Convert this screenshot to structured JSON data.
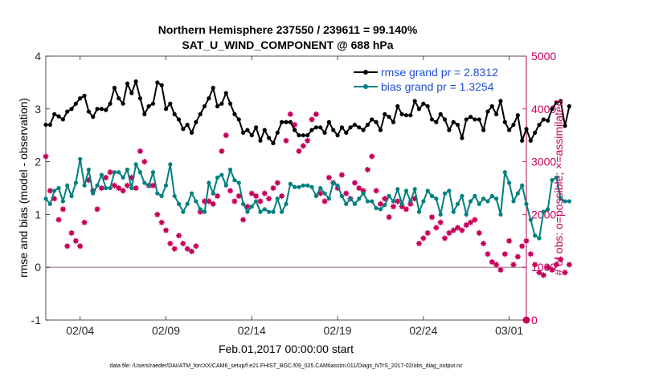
{
  "chart_data": {
    "type": "line",
    "title_line1": "Northern Hemisphere 237550 / 239611 = 99.140%",
    "title_line2": "SAT_U_WIND_COMPONENT @ 688 hPa",
    "xlabel": "Feb.01,2017 00:00:00 start",
    "ylabel_left": "rmse and bias (model - observation)",
    "ylabel_right": "# of obs: o=possible; ×=assimilated",
    "footnote": "data file: /Users/raeder/DAI/ATM_forcXX/CAM6_setup/f.e21.FHIST_BGC.f09_025.CAM6assim.011/Diags_NTrS_2017-02/obs_diag_output.nc",
    "xlim": [
      1,
      29
    ],
    "ylim_left": [
      -1,
      4
    ],
    "ylim_right": [
      0,
      5000
    ],
    "x_ticks": [
      3,
      8,
      13,
      18,
      23,
      28
    ],
    "x_tick_labels": [
      "02/04",
      "02/09",
      "02/14",
      "02/19",
      "02/24",
      "03/01"
    ],
    "y_left_ticks": [
      -1,
      0,
      1,
      2,
      3,
      4
    ],
    "y_left_tick_labels": [
      "-1",
      "0",
      "1",
      "2",
      "3",
      "4"
    ],
    "y_right_ticks": [
      0,
      1000,
      2000,
      3000,
      4000,
      5000
    ],
    "y_right_tick_labels": [
      "0",
      "1000",
      "2000",
      "3000",
      "4000",
      "5000"
    ],
    "x_start": 1.0,
    "x_step": 0.25,
    "legend": [
      {
        "label": "rmse grand pr = 2.8312",
        "color": "#000000"
      },
      {
        "label": "bias grand pr = 1.3254",
        "color": "#00807f"
      }
    ],
    "series": [
      {
        "name": "rmse",
        "axis": "left",
        "color": "#000000",
        "values": [
          2.7,
          2.7,
          2.9,
          2.86,
          2.8,
          2.95,
          3.0,
          3.1,
          3.2,
          3.25,
          2.95,
          2.85,
          3.0,
          3.0,
          2.98,
          3.1,
          3.4,
          3.2,
          3.1,
          3.48,
          3.3,
          3.52,
          3.2,
          2.9,
          3.05,
          3.1,
          3.5,
          3.45,
          3.0,
          3.1,
          2.9,
          2.8,
          2.62,
          2.7,
          2.55,
          2.75,
          2.9,
          3.05,
          3.2,
          3.4,
          3.05,
          3.1,
          3.3,
          3.1,
          2.9,
          2.8,
          2.55,
          2.6,
          2.5,
          2.65,
          2.4,
          2.6,
          2.45,
          2.35,
          2.55,
          2.75,
          2.75,
          2.75,
          2.6,
          2.5,
          2.5,
          2.5,
          2.6,
          2.65,
          2.65,
          2.55,
          2.75,
          2.6,
          2.5,
          2.65,
          2.55,
          2.65,
          2.7,
          2.65,
          2.6,
          2.7,
          2.8,
          2.75,
          2.6,
          2.9,
          2.85,
          2.75,
          3.05,
          2.9,
          2.88,
          2.88,
          3.15,
          3.0,
          3.1,
          3.05,
          2.8,
          2.75,
          2.9,
          2.8,
          2.6,
          2.75,
          2.7,
          2.45,
          2.8,
          2.85,
          2.8,
          2.8,
          2.6,
          2.95,
          3.05,
          2.9,
          3.15,
          2.75,
          2.6,
          2.7,
          2.88,
          2.4,
          2.62,
          2.4,
          2.55,
          2.7,
          2.8,
          2.78,
          3.0,
          3.12,
          3.15,
          2.68,
          3.05
        ]
      },
      {
        "name": "bias",
        "axis": "left",
        "color": "#00807f",
        "values": [
          1.3,
          1.2,
          1.45,
          1.5,
          1.25,
          1.55,
          1.35,
          1.6,
          2.05,
          1.55,
          1.85,
          1.4,
          1.55,
          1.75,
          1.5,
          1.5,
          1.8,
          1.8,
          1.7,
          1.85,
          1.5,
          1.95,
          1.8,
          1.6,
          1.55,
          1.8,
          1.4,
          1.35,
          1.55,
          1.95,
          1.35,
          1.2,
          1.05,
          1.2,
          1.4,
          1.25,
          1.1,
          1.05,
          1.6,
          1.4,
          1.7,
          1.75,
          1.55,
          1.85,
          1.65,
          1.6,
          1.2,
          1.05,
          1.15,
          1.25,
          1.05,
          1.1,
          1.05,
          1.05,
          1.3,
          1.05,
          1.2,
          1.58,
          1.52,
          1.52,
          1.55,
          1.55,
          1.52,
          1.35,
          1.5,
          1.4,
          1.3,
          1.6,
          1.55,
          1.35,
          1.2,
          1.3,
          1.2,
          1.3,
          1.4,
          1.25,
          1.25,
          1.12,
          1.1,
          1.18,
          1.35,
          1.25,
          1.48,
          1.2,
          1.45,
          1.25,
          1.48,
          1.05,
          1.25,
          1.45,
          1.35,
          1.3,
          1.0,
          1.4,
          1.45,
          1.05,
          1.2,
          1.35,
          1.0,
          1.25,
          1.35,
          1.2,
          1.3,
          1.25,
          1.35,
          1.3,
          1.0,
          1.8,
          1.6,
          1.25,
          1.4,
          1.55,
          1.2,
          0.9,
          0.6,
          0.55,
          1.05,
          1.1,
          1.65,
          1.7,
          1.3,
          1.25,
          1.25
        ]
      },
      {
        "name": "obs possible",
        "axis": "right",
        "color": "#c8005a",
        "values": [
          3100,
          2450,
          2300,
          1900,
          2100,
          1400,
          1650,
          1500,
          1400,
          1850,
          2650,
          2450,
          2100,
          2500,
          2700,
          2800,
          2550,
          2500,
          2450,
          2550,
          2700,
          2500,
          3200,
          3000,
          2550,
          2550,
          2000,
          1850,
          1700,
          1450,
          1350,
          1600,
          1450,
          1350,
          1300,
          1400,
          2050,
          2250,
          2250,
          2200,
          2350,
          3200,
          3500,
          2450,
          2250,
          2350,
          1900,
          2150,
          2400,
          2350,
          2250,
          2400,
          2300,
          2500,
          2600,
          2350,
          3400,
          3900,
          3700,
          3200,
          3300,
          3400,
          3800,
          3900,
          2400,
          2250,
          2700,
          2600,
          2500,
          2750,
          2400,
          2300,
          2600,
          2500,
          2450,
          2850,
          3100,
          2450,
          2200,
          2300,
          1950,
          2150,
          2250,
          2150,
          2100,
          2200,
          2300,
          1450,
          1550,
          1650,
          1950,
          1750,
          1850,
          1550,
          1650,
          1700,
          1750,
          1700,
          1800,
          1850,
          1900,
          1650,
          1450,
          1250,
          1100,
          1050,
          950,
          1250,
          1500,
          1050,
          1200,
          1400,
          1500,
          1250,
          1050,
          900,
          850,
          1000,
          950,
          1050,
          1150,
          900,
          1050
        ]
      }
    ]
  }
}
